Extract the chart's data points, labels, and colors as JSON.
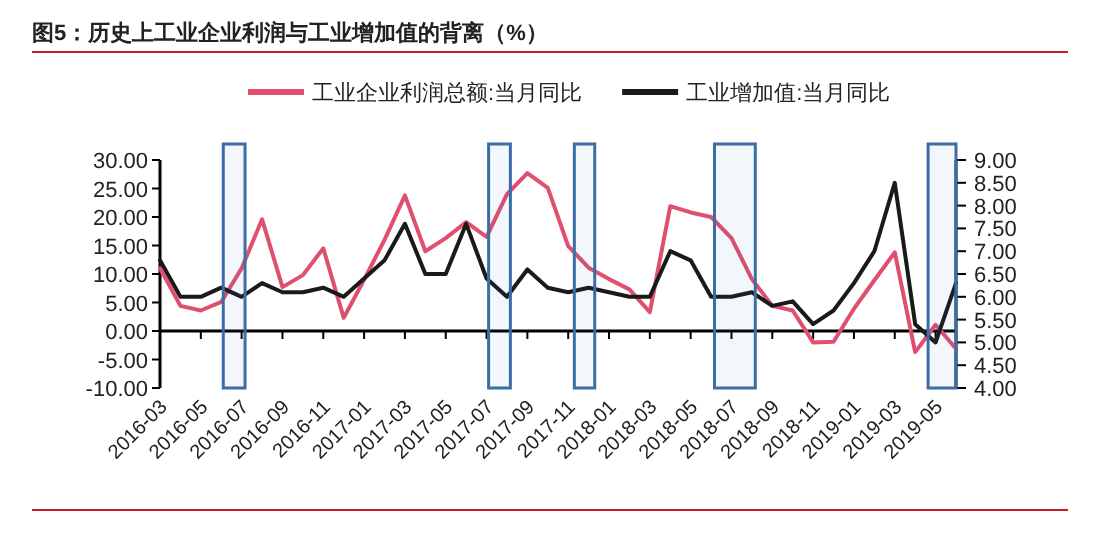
{
  "chart_data": {
    "type": "line",
    "title": "图5：历史上工业企业利润与工业增加值的背离（%）",
    "x": [
      "2016-03",
      "2016-04",
      "2016-05",
      "2016-06",
      "2016-07",
      "2016-08",
      "2016-09",
      "2016-10",
      "2016-11",
      "2016-12",
      "2017-01",
      "2017-02",
      "2017-03",
      "2017-04",
      "2017-05",
      "2017-06",
      "2017-07",
      "2017-08",
      "2017-09",
      "2017-10",
      "2017-11",
      "2017-12",
      "2018-01",
      "2018-02",
      "2018-03",
      "2018-04",
      "2018-05",
      "2018-06",
      "2018-07",
      "2018-08",
      "2018-09",
      "2018-10",
      "2018-11",
      "2018-12",
      "2019-01",
      "2019-02",
      "2019-03",
      "2019-04",
      "2019-05",
      "2019-06"
    ],
    "series": [
      {
        "name": "工业企业利润总额:当月同比",
        "color": "#e0506e",
        "values": [
          11,
          4.4,
          3.6,
          5.1,
          11,
          19.6,
          7.7,
          9.8,
          14.5,
          2.3,
          9,
          16,
          23.8,
          14,
          16.3,
          19.1,
          16.5,
          24,
          27.7,
          25.1,
          14.9,
          11.1,
          9.1,
          7.3,
          3.3,
          21.9,
          20.8,
          20,
          16.3,
          9.1,
          4.4,
          3.6,
          -2,
          -1.9,
          3.9,
          8.9,
          13.8,
          -3.7,
          1.1,
          -3.1
        ]
      },
      {
        "name": "工业增加值:当月同比",
        "color": "#1a1a1a",
        "axis": "y2",
        "values": [
          6.8,
          6,
          6,
          6.2,
          6,
          6.3,
          6.1,
          6.1,
          6.2,
          6,
          6.4,
          6.8,
          7.6,
          6.5,
          6.5,
          7.6,
          6.4,
          6,
          6.6,
          6.2,
          6.1,
          6.2,
          6.1,
          6,
          6,
          7,
          6.8,
          6,
          6,
          6.1,
          5.8,
          5.9,
          5.4,
          5.7,
          6.3,
          7,
          8.5,
          5.4,
          5,
          6.3
        ]
      }
    ],
    "xlim": [
      "2016-03",
      "2019-06"
    ],
    "xticks": [
      "2016-03",
      "2016-05",
      "2016-07",
      "2016-09",
      "2016-11",
      "2017-01",
      "2017-03",
      "2017-05",
      "2017-07",
      "2017-09",
      "2017-11",
      "2018-01",
      "2018-03",
      "2018-05",
      "2018-07",
      "2018-09",
      "2018-11",
      "2019-01",
      "2019-03",
      "2019-05"
    ],
    "ylim": [
      -10,
      30
    ],
    "yticks": [
      {
        "value": -10,
        "label": "-10.00"
      },
      {
        "value": -5,
        "label": "-5.00"
      },
      {
        "value": 0,
        "label": "0.00"
      },
      {
        "value": 5,
        "label": "5.00"
      },
      {
        "value": 10,
        "label": "10.00"
      },
      {
        "value": 15,
        "label": "15.00"
      },
      {
        "value": 20,
        "label": "20.00"
      },
      {
        "value": 25,
        "label": "25.00"
      },
      {
        "value": 30,
        "label": "30.00"
      }
    ],
    "y2lim": [
      4,
      9
    ],
    "y2ticks": [
      {
        "value": 4,
        "label": "4.00"
      },
      {
        "value": 4.5,
        "label": "4.50"
      },
      {
        "value": 5,
        "label": "5.00"
      },
      {
        "value": 5.5,
        "label": "5.50"
      },
      {
        "value": 6,
        "label": "6.00"
      },
      {
        "value": 6.5,
        "label": "6.50"
      },
      {
        "value": 7,
        "label": "7.00"
      },
      {
        "value": 7.5,
        "label": "7.50"
      },
      {
        "value": 8,
        "label": "8.00"
      },
      {
        "value": 8.5,
        "label": "8.50"
      },
      {
        "value": 9,
        "label": "9.00"
      }
    ],
    "bands": [
      {
        "axis": "x",
        "from": "2016-06-04",
        "to": "2016-07-06",
        "color": "#3a6ea5"
      },
      {
        "axis": "x",
        "from": "2017-07-04",
        "to": "2017-08-06",
        "color": "#3a6ea5"
      },
      {
        "axis": "x",
        "from": "2017-11-10",
        "to": "2017-12-10",
        "color": "#3a6ea5"
      },
      {
        "axis": "x",
        "from": "2018-06-06",
        "to": "2018-08-06",
        "color": "#3a6ea5"
      },
      {
        "axis": "x",
        "from": "2019-04-20",
        "to": "2019-06",
        "color": "#3a6ea5"
      }
    ],
    "legend": "top",
    "marker": "none",
    "line_style": "solid"
  }
}
